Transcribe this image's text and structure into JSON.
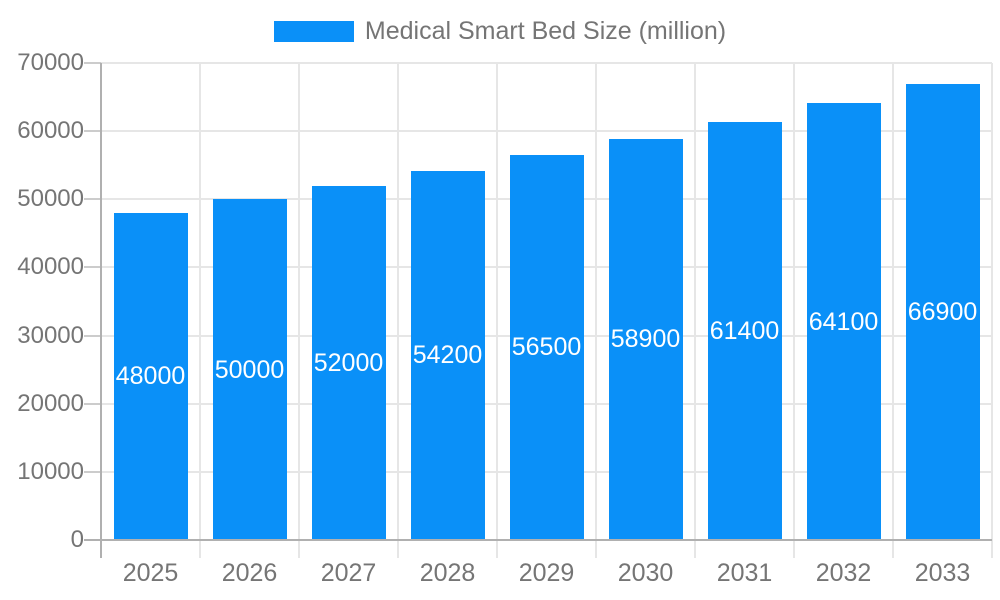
{
  "chart_data": {
    "type": "bar",
    "title": "Medical Smart Bed Size (million)",
    "categories": [
      "2025",
      "2026",
      "2027",
      "2028",
      "2029",
      "2030",
      "2031",
      "2032",
      "2033"
    ],
    "series": [
      {
        "name": "Medical Smart Bed Size (million)",
        "values": [
          48000,
          50000,
          52000,
          54200,
          56500,
          58900,
          61400,
          64100,
          66900
        ]
      }
    ],
    "value_labels": [
      "48000",
      "50000",
      "52000",
      "54200",
      "56500",
      "58900",
      "61400",
      "64100",
      "66900"
    ],
    "xlabel": "",
    "ylabel": "",
    "ylim": [
      0,
      70000
    ],
    "yticks": [
      0,
      10000,
      20000,
      30000,
      40000,
      50000,
      60000,
      70000
    ],
    "grid": true,
    "legend_position": "top",
    "colors": {
      "bar": "#0a90f8",
      "grid_line": "#e6e6e6",
      "axis_line": "#b0b0b0",
      "tick_line": "#cccccc",
      "axis_text": "#757575",
      "legend_text": "#757575",
      "bar_label_text": "#ffffff",
      "background": "#ffffff"
    }
  }
}
